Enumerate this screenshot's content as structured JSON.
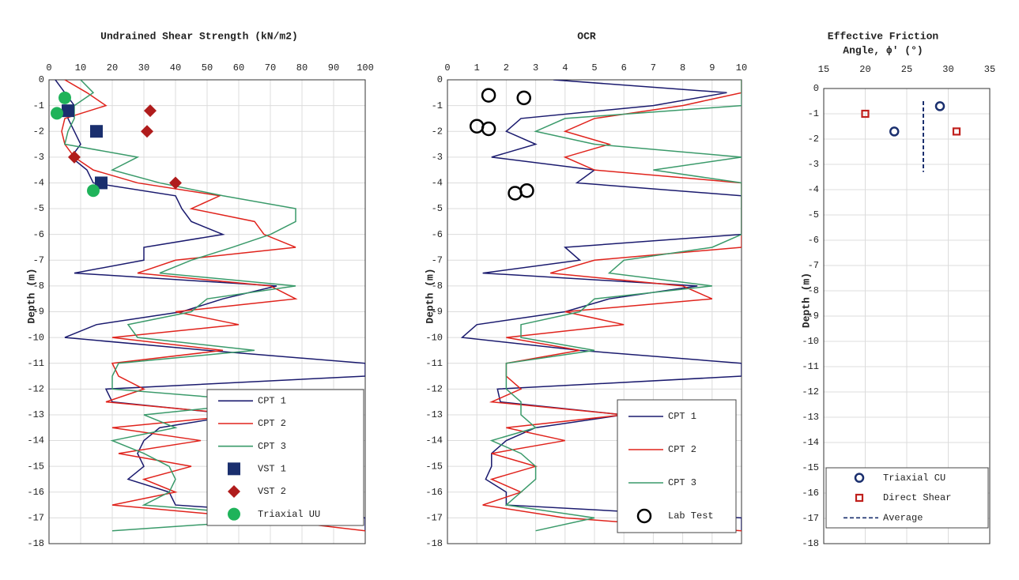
{
  "chart_data": [
    {
      "type": "line",
      "title": "Undrained Shear Strength (kN/m2)",
      "ylabel": "Depth (m)",
      "xlim": [
        0,
        100
      ],
      "xticks": [
        0,
        10,
        20,
        30,
        40,
        50,
        60,
        70,
        80,
        90,
        100
      ],
      "ylim": [
        -18,
        0
      ],
      "yticks": [
        0,
        -1,
        -2,
        -3,
        -4,
        -5,
        -6,
        -7,
        -8,
        -9,
        -10,
        -11,
        -12,
        -13,
        -14,
        -15,
        -16,
        -17,
        -18
      ],
      "grid": true,
      "depth": [
        0,
        -0.5,
        -1,
        -1.5,
        -2,
        -2.5,
        -3,
        -3.5,
        -4,
        -4.5,
        -5,
        -5.5,
        -6,
        -6.5,
        -7,
        -7.5,
        -8,
        -8.5,
        -9,
        -9.5,
        -10,
        -10.5,
        -11,
        -11.5,
        -12,
        -12.5,
        -13,
        -13.5,
        -14,
        -14.5,
        -15,
        -15.5,
        -16,
        -16.5,
        -17,
        -17.5
      ],
      "series": [
        {
          "name": "CPT 1",
          "color": "#1a1a6e",
          "values": [
            2,
            5,
            8,
            6,
            8,
            10,
            7,
            12,
            14,
            40,
            42,
            45,
            55,
            30,
            30,
            8,
            72,
            55,
            42,
            15,
            5,
            50,
            100,
            100,
            18,
            20,
            60,
            35,
            30,
            28,
            30,
            25,
            38,
            40,
            100,
            100
          ]
        },
        {
          "name": "CPT 2",
          "color": "#e0231c",
          "values": [
            5,
            12,
            18,
            5,
            4,
            5,
            8,
            14,
            28,
            54,
            45,
            65,
            68,
            78,
            40,
            28,
            70,
            78,
            40,
            60,
            20,
            55,
            20,
            22,
            30,
            18,
            62,
            20,
            48,
            22,
            45,
            30,
            40,
            20,
            65,
            100
          ]
        },
        {
          "name": "CPT 3",
          "color": "#3a9a6a",
          "values": [
            10,
            14,
            8,
            8,
            6,
            5,
            28,
            20,
            35,
            55,
            78,
            78,
            70,
            58,
            45,
            35,
            78,
            50,
            45,
            25,
            28,
            65,
            22,
            20,
            20,
            70,
            30,
            40,
            20,
            30,
            38,
            40,
            38,
            30,
            80,
            20
          ]
        },
        {
          "name": "VST 1",
          "color": "#1a2f6e",
          "marker": "square",
          "x": [
            6,
            15,
            16.5
          ],
          "y": [
            -1.2,
            -2.0,
            -4.0
          ]
        },
        {
          "name": "VST 2",
          "color": "#b01c1c",
          "marker": "diamond",
          "x": [
            32,
            31,
            8,
            40
          ],
          "y": [
            -1.2,
            -2.0,
            -3.0,
            -4.0
          ]
        },
        {
          "name": "Triaxial UU",
          "color": "#1fb35a",
          "marker": "circle",
          "x": [
            5,
            2.5,
            14
          ],
          "y": [
            -0.7,
            -1.3,
            -4.3
          ]
        }
      ],
      "legend": "lower right"
    },
    {
      "type": "line",
      "title": "OCR",
      "ylabel": "Depth (m)",
      "xlim": [
        0,
        10
      ],
      "xticks": [
        0,
        1,
        2,
        3,
        4,
        5,
        6,
        7,
        8,
        9,
        10
      ],
      "ylim": [
        -18,
        0
      ],
      "yticks": [
        0,
        -1,
        -2,
        -3,
        -4,
        -5,
        -6,
        -7,
        -8,
        -9,
        -10,
        -11,
        -12,
        -13,
        -14,
        -15,
        -16,
        -17,
        -18
      ],
      "grid": true,
      "depth": [
        0,
        -0.5,
        -1,
        -1.5,
        -2,
        -2.5,
        -3,
        -3.5,
        -4,
        -4.5,
        -5,
        -5.5,
        -6,
        -6.5,
        -7,
        -7.5,
        -8,
        -8.5,
        -9,
        -9.5,
        -10,
        -10.5,
        -11,
        -11.5,
        -12,
        -12.5,
        -13,
        -13.5,
        -14,
        -14.5,
        -15,
        -15.5,
        -16,
        -16.5,
        -17,
        -17.5
      ],
      "series": [
        {
          "name": "CPT 1",
          "color": "#1a1a6e",
          "values": [
            3.6,
            9.5,
            7,
            2.5,
            2,
            3,
            1.5,
            5,
            4.4,
            10,
            10,
            10,
            10,
            4,
            4.5,
            1.2,
            8.5,
            5.5,
            4,
            1,
            0.5,
            4.5,
            10,
            10,
            1.7,
            1.8,
            6,
            3,
            2,
            1.5,
            1.5,
            1.3,
            2,
            2,
            10,
            10
          ]
        },
        {
          "name": "CPT 2",
          "color": "#e0231c",
          "values": [
            10,
            10,
            8,
            5,
            4,
            5.5,
            4,
            5,
            10,
            10,
            10,
            10,
            10,
            10,
            5,
            3.5,
            8,
            9,
            4,
            6,
            2,
            4.5,
            2,
            2,
            2.5,
            1.5,
            6,
            2,
            4,
            1.5,
            3,
            1.5,
            2.5,
            1.2,
            4,
            10
          ]
        },
        {
          "name": "CPT 3",
          "color": "#3a9a6a",
          "values": [
            10,
            10,
            10,
            4,
            3,
            5,
            10,
            7,
            10,
            10,
            10,
            10,
            10,
            9,
            6,
            5.5,
            9,
            5,
            4.5,
            2.5,
            2.5,
            5,
            2,
            2,
            2,
            2.5,
            2.5,
            3,
            1.5,
            2.5,
            3,
            3,
            2.5,
            2,
            5,
            3
          ]
        },
        {
          "name": "Lab Test",
          "color": "#000000",
          "marker": "ring",
          "x": [
            1.4,
            2.6,
            1.0,
            1.4,
            2.3,
            2.7
          ],
          "y": [
            -0.6,
            -0.7,
            -1.8,
            -1.9,
            -4.4,
            -4.3
          ]
        }
      ],
      "legend": "lower right"
    },
    {
      "type": "scatter",
      "title": [
        "Effective Friction",
        "Angle, ϕ' (°)"
      ],
      "ylabel": "Depth (m)",
      "xlim": [
        15,
        35
      ],
      "xticks": [
        15,
        20,
        25,
        30,
        35
      ],
      "ylim": [
        -18,
        0
      ],
      "yticks": [
        0,
        -1,
        -2,
        -3,
        -4,
        -5,
        -6,
        -7,
        -8,
        -9,
        -10,
        -11,
        -12,
        -13,
        -14,
        -15,
        -16,
        -17,
        -18
      ],
      "grid": true,
      "series": [
        {
          "name": "Triaxial CU",
          "color": "#1a2f6e",
          "marker": "ring",
          "x": [
            29,
            23.5
          ],
          "y": [
            -0.7,
            -1.7
          ]
        },
        {
          "name": "Direct Shear",
          "color": "#c0201c",
          "marker": "opensquare",
          "x": [
            20,
            31
          ],
          "y": [
            -1.0,
            -1.7
          ]
        },
        {
          "name": "Average",
          "color": "#1a2f6e",
          "dash": true,
          "x": [
            27,
            27
          ],
          "y": [
            -0.5,
            -3.3
          ]
        }
      ],
      "legend": "lower center"
    }
  ]
}
